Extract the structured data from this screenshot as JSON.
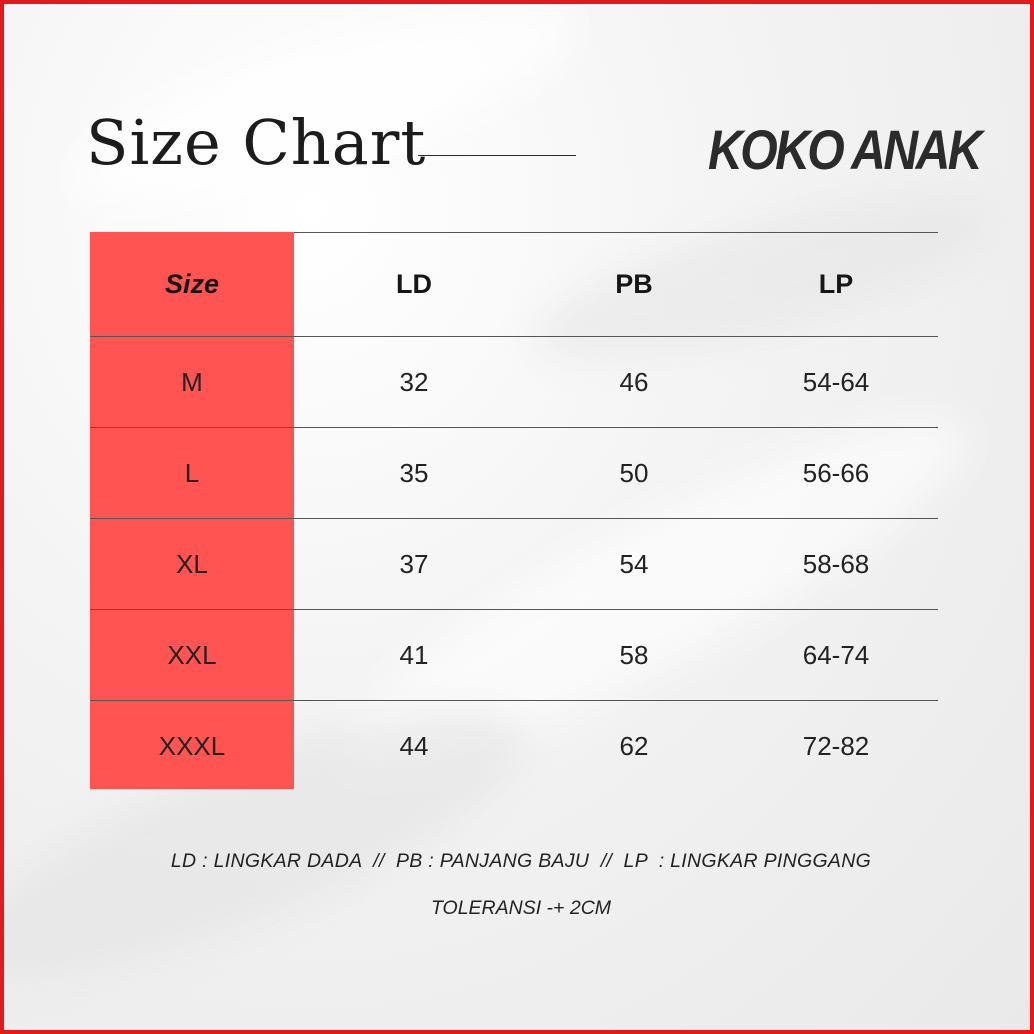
{
  "page": {
    "title": "Size Chart",
    "brand": "KOKO ANAK",
    "colors": {
      "border": "#e8171c",
      "size_column": "#ff5452",
      "text": "#222222"
    }
  },
  "table": {
    "headers": [
      "Size",
      "LD",
      "PB",
      "LP"
    ],
    "rows": [
      [
        "M",
        "32",
        "46",
        "54-64"
      ],
      [
        "L",
        "35",
        "50",
        "56-66"
      ],
      [
        "XL",
        "37",
        "54",
        "58-68"
      ],
      [
        "XXL",
        "41",
        "58",
        "64-74"
      ],
      [
        "XXXL",
        "44",
        "62",
        "72-82"
      ]
    ]
  },
  "footer": {
    "legend": "LD : LINGKAR DADA  //  PB : PANJANG BAJU  //  LP  : LINGKAR PINGGANG",
    "tolerance": "TOLERANSI -+ 2CM"
  }
}
